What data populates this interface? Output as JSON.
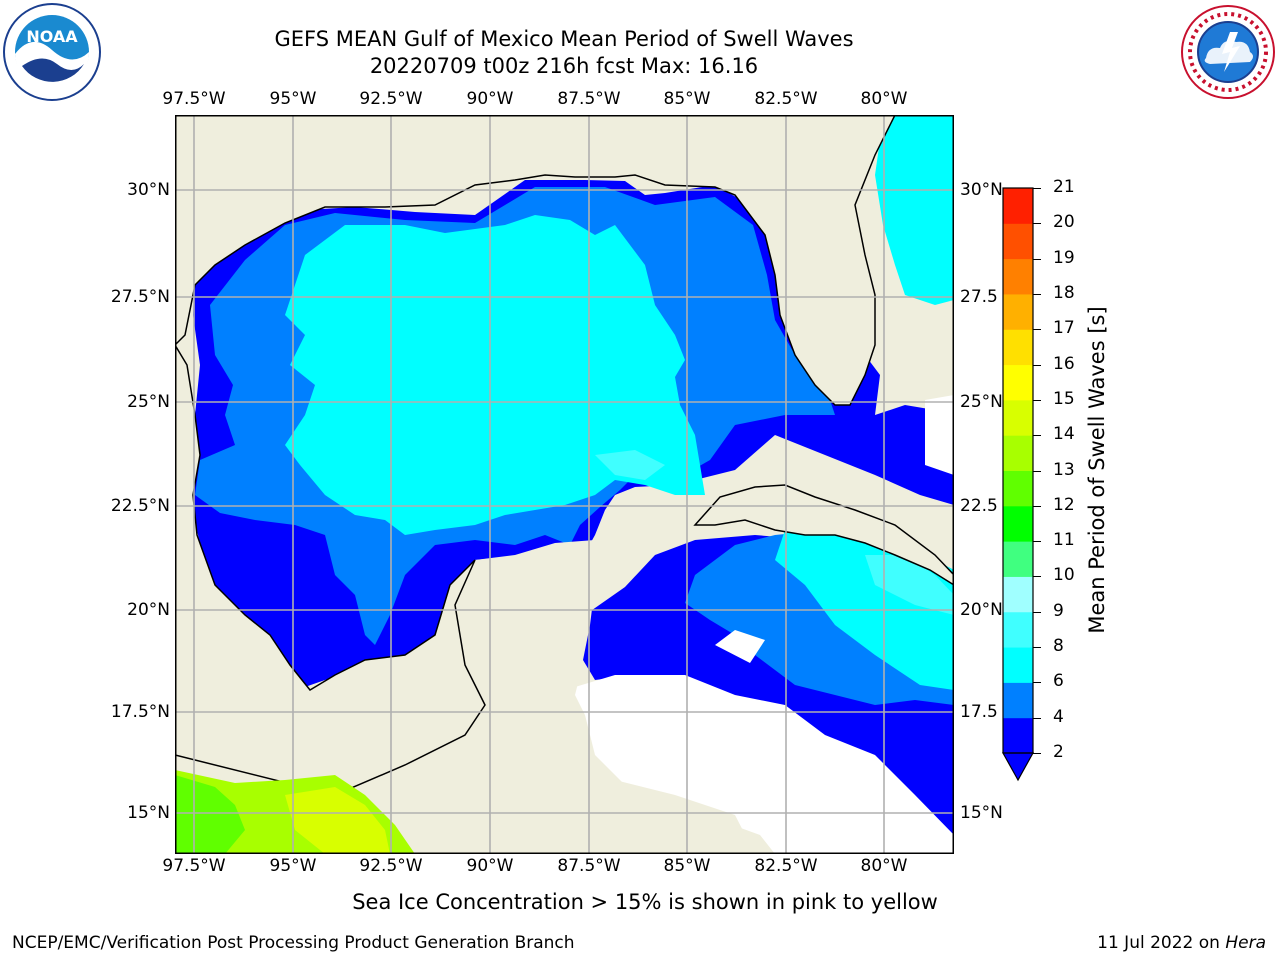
{
  "header": {
    "title_line1": "GEFS MEAN Gulf of Mexico Mean Period of Swell Waves",
    "title_line2": "20220709 t00z 216h fcst   Max: 16.16"
  },
  "logos": {
    "left": "NOAA",
    "right": "NATIONAL WEATHER SERVICE"
  },
  "map": {
    "lon_ticks": [
      "97.5°W",
      "95°W",
      "92.5°W",
      "90°W",
      "87.5°W",
      "85°W",
      "82.5°W",
      "80°W"
    ],
    "lat_ticks_left": [
      "30°N",
      "27.5°N",
      "25°N",
      "22.5°N",
      "20°N",
      "17.5°N",
      "15°N"
    ],
    "lat_ticks_right": [
      "30°N",
      "27.5",
      "25°N",
      "22.5",
      "20°N",
      "17.5",
      "15°N"
    ],
    "colors": {
      "land": "#efeedd",
      "gridline": "#b0b0b0",
      "coast": "#000000"
    }
  },
  "colorbar": {
    "label": "Mean Period of Swell Waves [s]",
    "ticks": [
      "2",
      "4",
      "6",
      "8",
      "9",
      "10",
      "11",
      "12",
      "13",
      "14",
      "15",
      "16",
      "17",
      "18",
      "19",
      "20",
      "21"
    ],
    "colors": [
      "#0000ff",
      "#0080ff",
      "#00ffff",
      "#40ffff",
      "#a0ffff",
      "#40ff80",
      "#00ff00",
      "#60ff00",
      "#a8ff00",
      "#d8ff00",
      "#ffff00",
      "#ffe000",
      "#ffb000",
      "#ff8000",
      "#ff5000",
      "#ff2000",
      "#ff0000"
    ]
  },
  "footer": {
    "note": "Sea Ice Concentration > 15% is shown in pink to yellow",
    "credit": "NCEP/EMC/Verification Post Processing Product Generation Branch",
    "date": "11 Jul 2022 on ",
    "host": "Hera"
  }
}
